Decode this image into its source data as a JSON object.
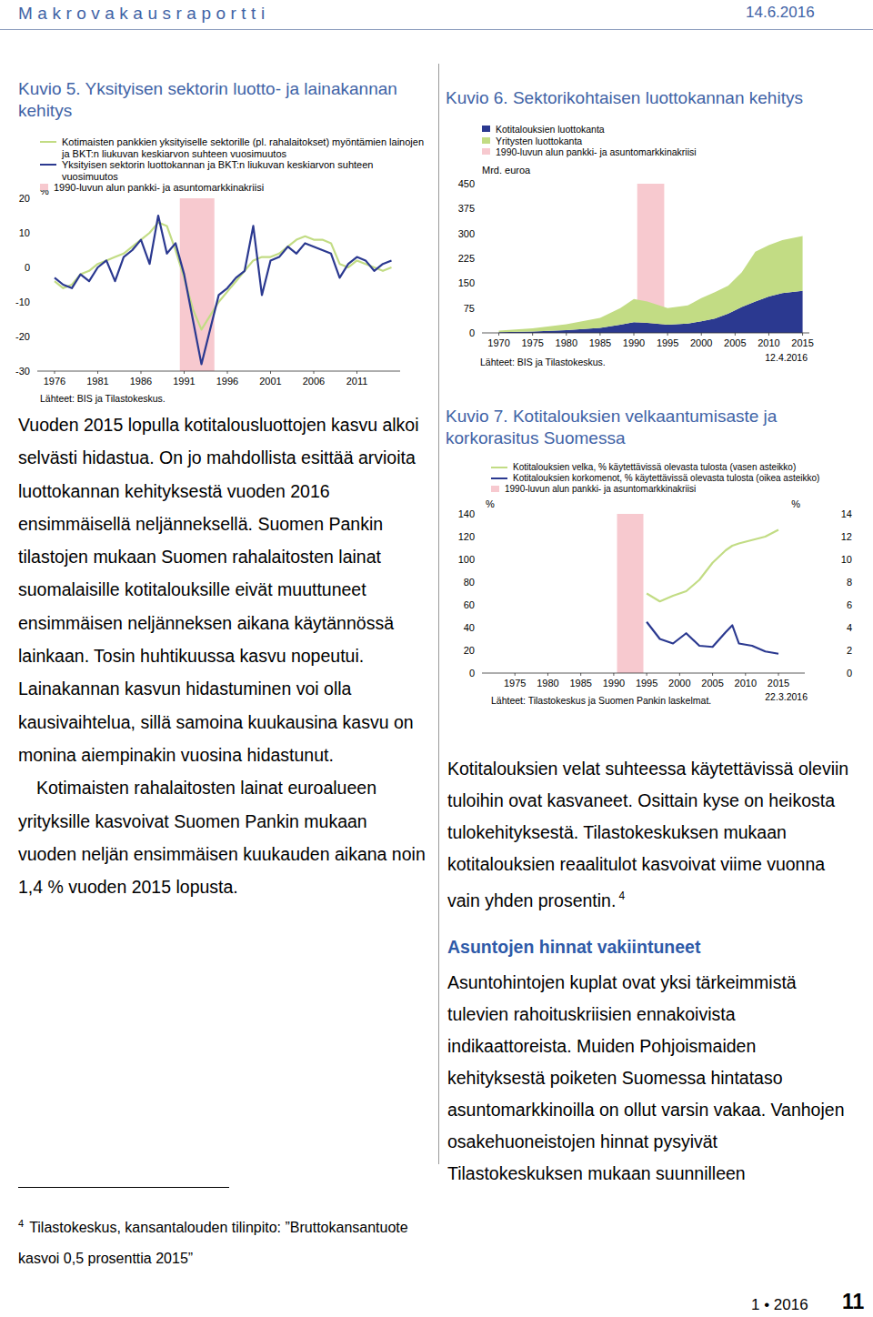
{
  "page": {
    "header": {
      "title": "Makrovakausraportti",
      "date": "14.6.2016"
    },
    "left_text": {
      "paragraphs": [
        "Vuoden 2015 lopulla kotitalousluottojen kasvu alkoi selvästi hidastua. On jo mahdollista esittää arvioita luottokannan kehityksestä vuoden 2016 ensimmäisellä neljänneksellä. Suomen Pankin tilastojen mukaan Suomen rahalaitosten lainat suomalaisille kotitalouksille eivät muuttuneet ensimmäisen neljänneksen aikana käytännössä lainkaan. Tosin huhtikuussa kasvu nopeutui. Lainakannan kasvun hidastuminen voi olla kausivaihtelua, sillä samoina kuukausina kasvu on monina aiempinakin vuosina hidastunut.",
        "Kotimaisten rahalaitosten lainat euroalueen yrityksille kasvoivat Suomen Pankin mukaan vuoden neljän ensimmäisen kuukauden aikana noin 1,4 % vuoden 2015 lopusta."
      ]
    },
    "right_text": {
      "paragraph": "Kotitalouksien velat suhteessa käytettävissä oleviin tuloihin ovat kasvaneet. Osittain kyse on heikosta tulokehityksestä. Tilastokeskuksen mukaan kotitalouksien reaalitulot kasvoivat viime vuonna vain yhden prosentin.",
      "footnote_ref": "4",
      "heading": "Asuntojen hinnat vakiintuneet",
      "paragraph_after": "Asuntohintojen kuplat ovat yksi tärkeimmistä tulevien rahoituskriisien ennakoivista indikaattoreista. Muiden Pohjoismaiden kehityksestä poiketen Suomessa hintataso asuntomarkkinoilla on ollut varsin vakaa. Vanhojen osakehuoneistojen hinnat pysyivät Tilastokeskuksen mukaan suunnilleen"
    },
    "footnote": {
      "number": "4",
      "text": "Tilastokeskus, kansantalouden tilinpito: ”Bruttokansantuote kasvoi 0,5 prosenttia 2015”"
    },
    "footer": {
      "issue": "1 • 2016",
      "page_number": "11"
    }
  },
  "chart_data": [
    {
      "type": "line",
      "title": "Kuvio 5. Yksityisen sektorin luotto- ja lainakannan kehitys",
      "y_label": "%",
      "source": "Lähteet: BIS ja Tilastokeskus.",
      "x": [
        1976,
        1977,
        1978,
        1979,
        1980,
        1981,
        1982,
        1983,
        1984,
        1985,
        1986,
        1987,
        1988,
        1989,
        1990,
        1991,
        1992,
        1993,
        1994,
        1995,
        1996,
        1997,
        1998,
        1999,
        2000,
        2001,
        2002,
        2003,
        2004,
        2005,
        2006,
        2007,
        2008,
        2009,
        2010,
        2011,
        2012,
        2013,
        2014,
        2015
      ],
      "xlim": [
        1974,
        2016
      ],
      "xticks": [
        1976,
        1981,
        1986,
        1991,
        1996,
        2001,
        2006,
        2011
      ],
      "ylim": [
        -30,
        20
      ],
      "yticks": [
        -30,
        -20,
        -10,
        0,
        10,
        20
      ],
      "grid": false,
      "series": [
        {
          "name": "Kotimaisten pankkien yksityiselle sektorille (pl. rahalaitokset) myöntämien lainojen ja BKT:n liukuvan keskiarvon suhteen vuosimuutos",
          "color": "#c2dc84",
          "values": [
            -4,
            -6,
            -5,
            -2,
            -1,
            1,
            2,
            3,
            4,
            6,
            8,
            10,
            13,
            12,
            5,
            -3,
            -12,
            -18,
            -14,
            -10,
            -7,
            -4,
            -1,
            2,
            3,
            3,
            4,
            6,
            8,
            9,
            8,
            8,
            7,
            1,
            0,
            2,
            1,
            0,
            -1,
            0
          ]
        },
        {
          "name": "Yksityisen sektorin luottokannan ja BKT:n liukuvan keskiarvon suhteen vuosimuutos",
          "color": "#2b3990",
          "values": [
            -3,
            -5,
            -6,
            -2,
            -4,
            0,
            2,
            -4,
            3,
            5,
            8,
            1,
            15,
            4,
            7,
            -2,
            -15,
            -28,
            -18,
            -8,
            -6,
            -3,
            -1,
            12,
            -8,
            2,
            3,
            6,
            4,
            7,
            6,
            5,
            4,
            -3,
            1,
            3,
            2,
            -1,
            1,
            2
          ]
        },
        {
          "name": "1990-luvun alun pankki- ja asuntomarkkinakriisi",
          "color": "#f7c9cf",
          "type": "band",
          "x": [
            1990.5,
            1994.5
          ]
        }
      ]
    },
    {
      "type": "area",
      "stacked": true,
      "title": "Kuvio 6. Sektorikohtaisen luottokannan kehitys",
      "y_label": "Mrd. euroa",
      "source": "Lähteet: BIS ja Tilastokeskus.",
      "date": "12.4.2016",
      "x": [
        1970,
        1975,
        1980,
        1985,
        1988,
        1990,
        1992,
        1995,
        1998,
        2000,
        2002,
        2004,
        2006,
        2008,
        2010,
        2012,
        2015
      ],
      "xlim": [
        1967.5,
        2016
      ],
      "xticks": [
        1970,
        1975,
        1980,
        1985,
        1990,
        1995,
        2000,
        2005,
        2010,
        2015
      ],
      "ylim": [
        0,
        450
      ],
      "yticks": [
        0,
        75,
        150,
        225,
        300,
        375,
        450
      ],
      "grid": false,
      "series": [
        {
          "name": "Kotitalouksien luottokanta",
          "color": "#2b3990",
          "values": [
            2,
            4,
            8,
            15,
            25,
            32,
            30,
            25,
            28,
            35,
            43,
            58,
            78,
            95,
            110,
            120,
            127
          ]
        },
        {
          "name": "Yritysten luottokanta",
          "color": "#c2dc84",
          "values": [
            5,
            10,
            18,
            30,
            50,
            70,
            65,
            50,
            55,
            70,
            80,
            85,
            105,
            150,
            155,
            160,
            165
          ]
        },
        {
          "name": "1990-luvun alun pankki- ja asuntomarkkinakriisi",
          "color": "#f7c9cf",
          "type": "band",
          "x": [
            1990.5,
            1994.5
          ]
        }
      ]
    },
    {
      "type": "line",
      "title": "Kuvio 7. Kotitalouksien velkaantumisaste ja korkorasitus Suomessa",
      "y_label": "%",
      "y2_label": "%",
      "source": "Lähteet: Tilastokeskus ja Suomen Pankin laskelmat.",
      "date": "22.3.2016",
      "x": [
        1995,
        1997,
        1999,
        2001,
        2003,
        2005,
        2007,
        2008,
        2009,
        2011,
        2013,
        2015
      ],
      "xlim": [
        1970,
        2019
      ],
      "xticks": [
        1975,
        1980,
        1985,
        1990,
        1995,
        2000,
        2005,
        2010,
        2015
      ],
      "ylim": [
        0,
        140
      ],
      "yticks": [
        0,
        20,
        40,
        60,
        80,
        100,
        120,
        140
      ],
      "y2lim": [
        0,
        14
      ],
      "y2ticks": [
        0,
        2,
        4,
        6,
        8,
        10,
        12,
        14
      ],
      "grid": false,
      "series": [
        {
          "name": "Kotitalouksien velka, % käytettävissä olevasta tulosta (vasen asteikko)",
          "color": "#c2dc84",
          "values": [
            70,
            63,
            68,
            72,
            82,
            97,
            108,
            112,
            114,
            117,
            120,
            126
          ]
        },
        {
          "name": "Kotitalouksien korkomenot, % käytettävissä olevasta tulosta (oikea asteikko)",
          "color": "#2b3990",
          "axis": "y2",
          "values": [
            4.5,
            3.0,
            2.6,
            3.5,
            2.4,
            2.3,
            3.6,
            4.2,
            2.6,
            2.4,
            1.9,
            1.7
          ]
        },
        {
          "name": "1990-luvun alun pankki- ja asuntomarkkinakriisi",
          "color": "#f7c9cf",
          "type": "band",
          "x": [
            1990.5,
            1994.5
          ]
        }
      ]
    }
  ]
}
